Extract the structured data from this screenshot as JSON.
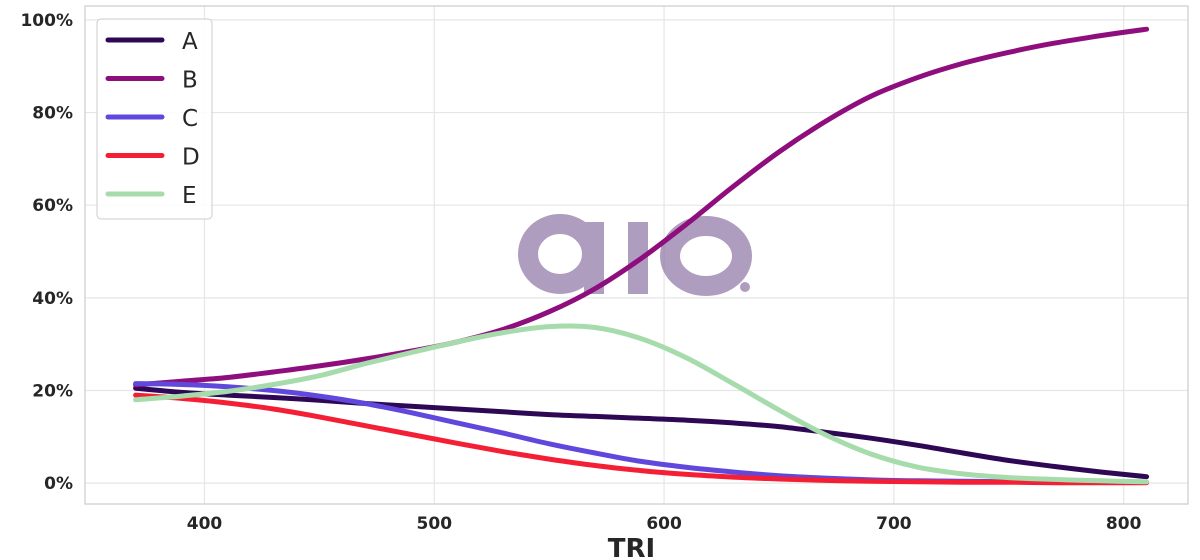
{
  "chart_data": {
    "type": "line",
    "title": "",
    "xlabel": "TRI",
    "ylabel": "",
    "xlim": [
      348,
      828
    ],
    "ylim": [
      -0.045,
      1.03
    ],
    "x_ticks": [
      400,
      500,
      600,
      700,
      800
    ],
    "x_tick_labels": [
      "400",
      "500",
      "600",
      "700",
      "800"
    ],
    "y_ticks": [
      0,
      0.2,
      0.4,
      0.6,
      0.8,
      1.0
    ],
    "y_tick_labels": [
      "0%",
      "20%",
      "40%",
      "60%",
      "80%",
      "100%"
    ],
    "grid": true,
    "legend_position": "top-left",
    "x": [
      370,
      390,
      410,
      430,
      450,
      470,
      490,
      510,
      530,
      550,
      570,
      590,
      610,
      630,
      650,
      670,
      690,
      710,
      730,
      750,
      770,
      790,
      810
    ],
    "series": [
      {
        "name": "A",
        "color": "#2e0854",
        "values": [
          0.205,
          0.196,
          0.19,
          0.185,
          0.179,
          0.172,
          0.166,
          0.16,
          0.154,
          0.148,
          0.144,
          0.14,
          0.136,
          0.13,
          0.122,
          0.11,
          0.097,
          0.082,
          0.065,
          0.049,
          0.036,
          0.024,
          0.014
        ]
      },
      {
        "name": "B",
        "color": "#8e0e7e",
        "values": [
          0.212,
          0.22,
          0.228,
          0.24,
          0.253,
          0.268,
          0.285,
          0.305,
          0.332,
          0.37,
          0.42,
          0.485,
          0.56,
          0.64,
          0.715,
          0.78,
          0.835,
          0.875,
          0.906,
          0.93,
          0.95,
          0.966,
          0.98
        ]
      },
      {
        "name": "C",
        "color": "#6048dd",
        "values": [
          0.215,
          0.213,
          0.208,
          0.2,
          0.188,
          0.172,
          0.152,
          0.13,
          0.108,
          0.085,
          0.065,
          0.047,
          0.034,
          0.024,
          0.016,
          0.011,
          0.007,
          0.005,
          0.004,
          0.003,
          0.002,
          0.002,
          0.002
        ]
      },
      {
        "name": "D",
        "color": "#f51f35",
        "values": [
          0.19,
          0.183,
          0.173,
          0.16,
          0.143,
          0.124,
          0.105,
          0.086,
          0.068,
          0.052,
          0.038,
          0.027,
          0.019,
          0.013,
          0.009,
          0.006,
          0.004,
          0.003,
          0.002,
          0.002,
          0.001,
          0.001,
          0.001
        ]
      },
      {
        "name": "E",
        "color": "#a6dcab",
        "values": [
          0.18,
          0.188,
          0.198,
          0.213,
          0.232,
          0.258,
          0.282,
          0.305,
          0.325,
          0.338,
          0.336,
          0.312,
          0.27,
          0.215,
          0.158,
          0.105,
          0.063,
          0.035,
          0.02,
          0.012,
          0.008,
          0.005,
          0.003
        ]
      }
    ]
  }
}
